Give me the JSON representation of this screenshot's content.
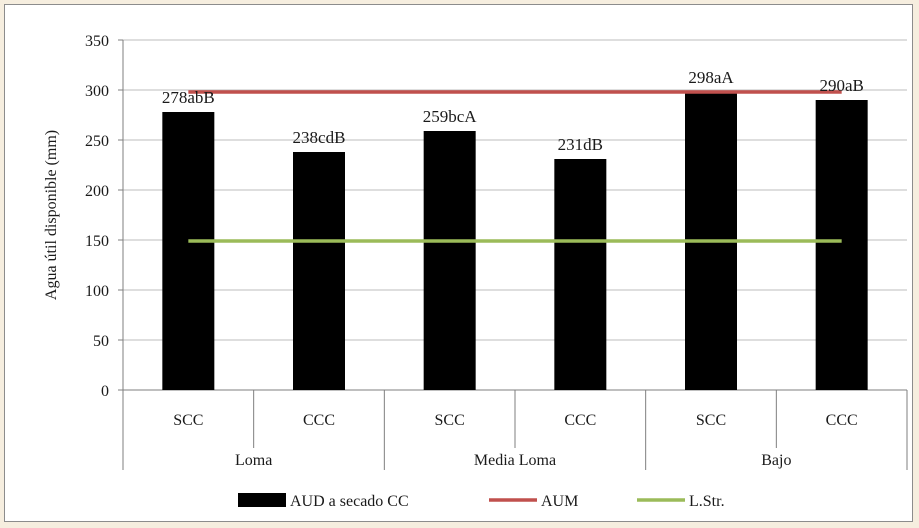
{
  "chart_data": {
    "type": "bar",
    "ylabel": "Agua útil disponible (mm)",
    "ylim": [
      0,
      350
    ],
    "yticks": [
      0,
      50,
      100,
      150,
      200,
      250,
      300,
      350
    ],
    "grid": "y",
    "legend_position": "bottom",
    "categories": [
      "SCC",
      "CCC",
      "SCC",
      "CCC",
      "SCC",
      "CCC"
    ],
    "groups": [
      {
        "label": "Loma",
        "span": 2
      },
      {
        "label": "Media Loma",
        "span": 2
      },
      {
        "label": "Bajo",
        "span": 2
      }
    ],
    "series": [
      {
        "name": "AUD  a secado CC",
        "kind": "bar",
        "color": "#000000",
        "values": [
          278,
          238,
          259,
          231,
          298,
          290
        ],
        "data_labels": [
          "278abB",
          "238cdB",
          "259bcA",
          "231dB",
          "298aA",
          "290aB"
        ]
      },
      {
        "name": "AUM",
        "kind": "line",
        "color": "#c0504d",
        "values": [
          298,
          298,
          298,
          298,
          298,
          298
        ]
      },
      {
        "name": "L.Str.",
        "kind": "line",
        "color": "#9bbb59",
        "values": [
          149,
          149,
          149,
          149,
          149,
          149
        ]
      }
    ]
  }
}
